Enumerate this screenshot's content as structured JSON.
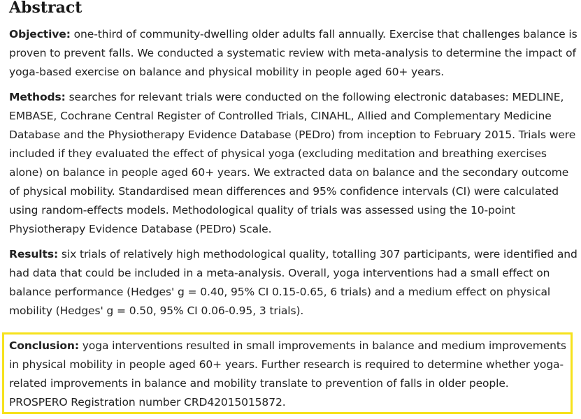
{
  "heading": "Abstract",
  "objective": {
    "label": "Objective:",
    "text": " one-third of community-dwelling older adults fall annually. Exercise that challenges balance is proven to prevent falls. We conducted a systematic review with meta-analysis to determine the impact of yoga-based exercise on balance and physical mobility in people aged 60+ years."
  },
  "methods": {
    "label": "Methods:",
    "text": " searches for relevant trials were conducted on the following electronic databases: MEDLINE, EMBASE, Cochrane Central Register of Controlled Trials, CINAHL, Allied and Complementary Medicine Database and the Physiotherapy Evidence Database (PEDro) from inception to February 2015. Trials were included if they evaluated the effect of physical yoga (excluding meditation and breathing exercises alone) on balance in people aged 60+ years. We extracted data on balance and the secondary outcome of physical mobility. Standardised mean differences and 95% confidence intervals (CI) were calculated using random-effects models. Methodological quality of trials was assessed using the 10-point Physiotherapy Evidence Database (PEDro) Scale."
  },
  "results": {
    "label": "Results:",
    "text": " six trials of relatively high methodological quality, totalling 307 participants, were identified and had data that could be included in a meta-analysis. Overall, yoga interventions had a small effect on balance performance (Hedges' g = 0.40, 95% CI 0.15-0.65, 6 trials) and a medium effect on physical mobility (Hedges' g = 0.50, 95% CI 0.06-0.95, 3 trials)."
  },
  "conclusion": {
    "label": "Conclusion:",
    "text": " yoga interventions resulted in small improvements in balance and medium improvements in physical mobility in people aged 60+ years. Further research is required to determine whether yoga-related improvements in balance and mobility translate to prevention of falls in older people. PROSPERO Registration number CRD42015015872."
  },
  "colors": {
    "highlight_border": "#f6e21c"
  }
}
